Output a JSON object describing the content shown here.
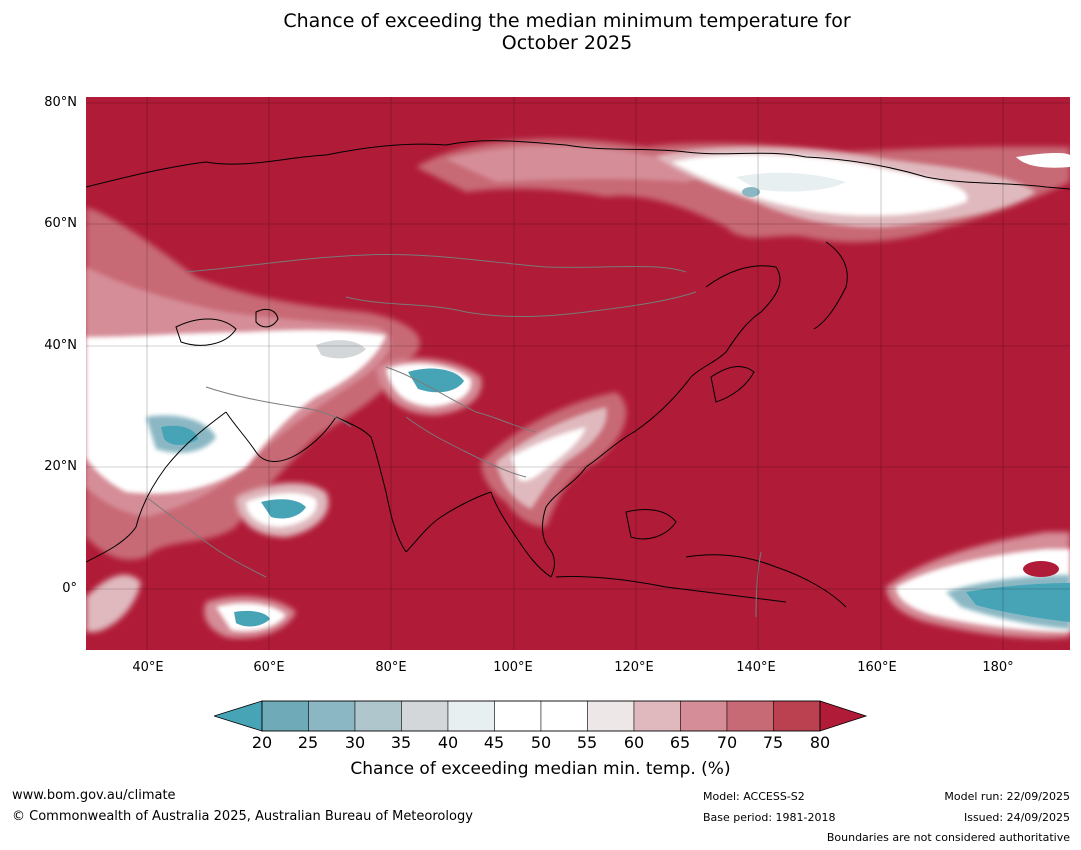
{
  "title_line1": "Chance of exceeding the median minimum temperature for",
  "title_line2": "October 2025",
  "map": {
    "lon_range": [
      30,
      191
    ],
    "lat_range": [
      -10,
      81
    ],
    "lat_ticks": [
      "80°N",
      "60°N",
      "40°N",
      "20°N",
      "0°"
    ],
    "lon_ticks": [
      "40°E",
      "60°E",
      "80°E",
      "100°E",
      "120°E",
      "140°E",
      "160°E",
      "180°"
    ],
    "gridlines": true
  },
  "colorbar": {
    "ticks": [
      "20",
      "25",
      "30",
      "35",
      "40",
      "45",
      "50",
      "55",
      "60",
      "65",
      "70",
      "75",
      "80"
    ],
    "colors": [
      "#6eaab7",
      "#8ab7c3",
      "#afc6cc",
      "#d3d7d9",
      "#e8eff1",
      "#ffffff",
      "#ffffff",
      "#ede7e8",
      "#dfb9be",
      "#d58d97",
      "#c86a76",
      "#bb4150"
    ],
    "below_color": "#47a4b7",
    "above_color": "#b01b37",
    "label": "Chance of exceeding median min. temp. (%)"
  },
  "footer": {
    "url": "www.bom.gov.au/climate",
    "copyright": "© Commonwealth of Australia 2025, Australian Bureau of Meteorology",
    "model": "Model: ACCESS-S2",
    "base_period": "Base period: 1981-2018",
    "model_run": "Model run: 22/09/2025",
    "issued": "Issued: 24/09/2025",
    "boundaries_note": "Boundaries are not considered authoritative"
  }
}
